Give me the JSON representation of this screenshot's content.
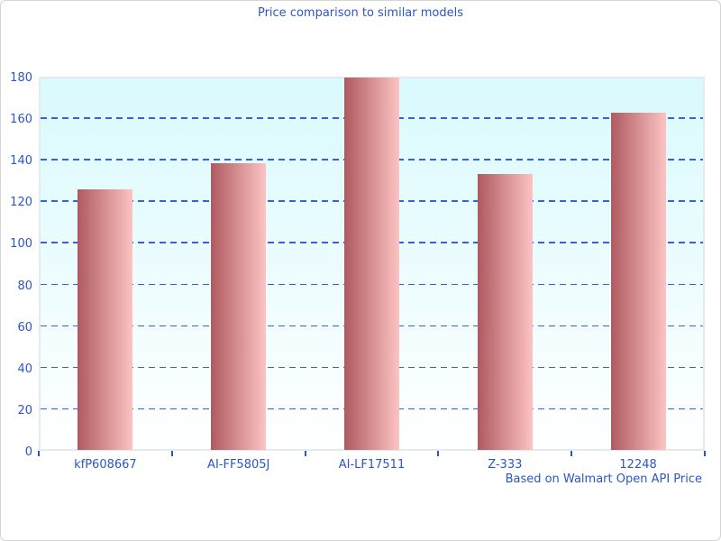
{
  "chart_data": {
    "type": "bar",
    "title": "Price comparison to similar models",
    "categories": [
      "kfP608667",
      "AI-FF5805J",
      "AI-LF17511",
      "Z-333",
      "12248"
    ],
    "values": [
      125.9,
      138.5,
      179.5,
      133.2,
      162.5
    ],
    "xlabel": "",
    "ylabel": "",
    "ylim": [
      0,
      180
    ],
    "ytick_step": 20,
    "yticks": [
      0,
      20,
      40,
      60,
      80,
      100,
      120,
      140,
      160,
      180
    ],
    "grid": "horizontal-dashed",
    "legend": "none",
    "footnote": "Based on Walmart Open API Price",
    "colors": {
      "text": "#2a56c6",
      "grid": "#3a62cf",
      "bar_gradient_left": "#ae5a60",
      "bar_gradient_right": "#fdc3c3",
      "plot_bg_top": "#d9fafd",
      "plot_bg_bottom": "#ffffff",
      "plot_border": "#e2ecec",
      "frame_border": "#d4d4d4"
    }
  }
}
